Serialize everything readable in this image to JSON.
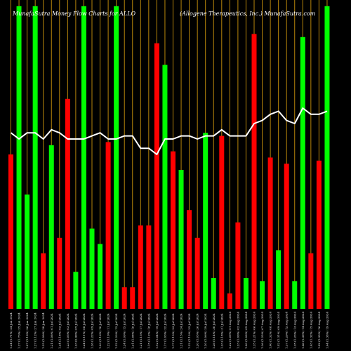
{
  "chart_data": {
    "type": "bar",
    "title_left": "MunafaSutra  Money Flow  Charts for ALLO",
    "title_right": "(Allogene   Therapeutics,  Inc.) MunafaSutra.com",
    "ylim": [
      0,
      100
    ],
    "colors": {
      "background": "#000000",
      "up": "#00ff00",
      "down": "#ff0000",
      "grid": "#b8860b",
      "line": "#ffffff",
      "text": "#ffffff"
    },
    "categories": [
      "1.24 (1.71%) 24 Jun 2024",
      "1.27 (1.73%) 25 Jun 2024",
      "1.27 (1.19%) 26 Jun 2024",
      "1.27 (1.12%) 27 Jun 2024",
      "1.25 (1.09%) 28 Jun 2024",
      "1.21 (1.08%) 01 Jul 2024",
      "1.24 (1.18%) 02 Jul 2024",
      "1.23 (1.05%) 03 Jul 2024",
      "1.23 (0.99%) 05 Jul 2024",
      "1.24 (1.11%) 08 Jul 2024",
      "1.26 (1.22%) 09 Jul 2024",
      "1.23 (1.16%) 10 Jul 2024",
      "1.22 (1.19%) 11 Jul 2024",
      "1.22 (1.23%) 12 Jul 2024",
      "1.24 (1.09%) 15 Jul 2024",
      "1.21 (1.08%) 16 Jul 2024",
      "1.21 (1.15%) 17 Jul 2024",
      "1.15 (1.12%) 18 Jul 2024",
      "1.12 (1.04%) 19 Jul 2024",
      "1.17 (1.03%) 22 Jul 2024",
      "1.17 (1.15%) 23 Jul 2024",
      "1.21 (1.15%) 24 Jul 2024",
      "1.22 (1.12%) 25 Jul 2024",
      "1.20 (1.05%) 26 Jul 2024",
      "1.20 (1.06%) 29 Jul 2024",
      "1.26 (1.14%) 30 Jul 2024",
      "1.23 (1.18%) 31 Jul 2024",
      "1.22 (1.09%) 01 Aug 2024",
      "1.23 (1.09%) 02 Aug 2024",
      "1.20 (1.09%) 05 Aug 2024",
      "1.35 (1.21%) 06 Aug 2024",
      "1.36 (1.22%) 07 Aug 2024",
      "1.40 (1.32%) 08 Aug 2024",
      "1.42 (1.31%) 09 Aug 2024",
      "1.37 (1.29%) 12 Aug 2024",
      "1.35 (1.23%) 13 Aug 2024",
      "1.46 (1.39%) 14 Aug 2024",
      "1.43 (1.32%) 15 Aug 2024",
      "1.42 (1.35%) 16 Aug 2024",
      "1.44 (1.38%) 19 Aug 2024"
    ],
    "series": [
      {
        "colors": [
          "down",
          "up",
          "up",
          "up",
          "down",
          "up",
          "down",
          "down",
          "up",
          "up",
          "up",
          "up",
          "down",
          "up",
          "down",
          "down",
          "down",
          "down",
          "down",
          "up",
          "down",
          "up",
          "down",
          "down",
          "up",
          "up",
          "down",
          "down",
          "down",
          "up",
          "down",
          "up",
          "down",
          "up",
          "down",
          "up",
          "up",
          "down",
          "down",
          "up"
        ],
        "values": [
          50,
          98,
          37,
          98,
          18,
          53,
          23,
          68,
          12,
          98,
          26,
          21,
          54,
          98,
          7,
          7,
          27,
          27,
          86,
          79,
          51,
          45,
          32,
          23,
          57,
          10,
          56,
          5,
          28,
          10,
          89,
          9,
          49,
          19,
          47,
          9,
          88,
          18,
          48,
          98
        ]
      }
    ],
    "line_series": {
      "values": [
        57,
        55,
        57,
        57,
        55,
        58,
        57,
        55,
        55,
        55,
        56,
        57,
        55,
        55,
        56,
        56,
        52,
        52,
        50,
        55,
        55,
        56,
        56,
        55,
        56,
        56,
        58,
        56,
        56,
        56,
        60,
        61,
        63,
        64,
        61,
        60,
        65,
        63,
        63,
        64
      ],
      "ylim": [
        0,
        100
      ]
    },
    "grid": true,
    "legend": "none"
  }
}
